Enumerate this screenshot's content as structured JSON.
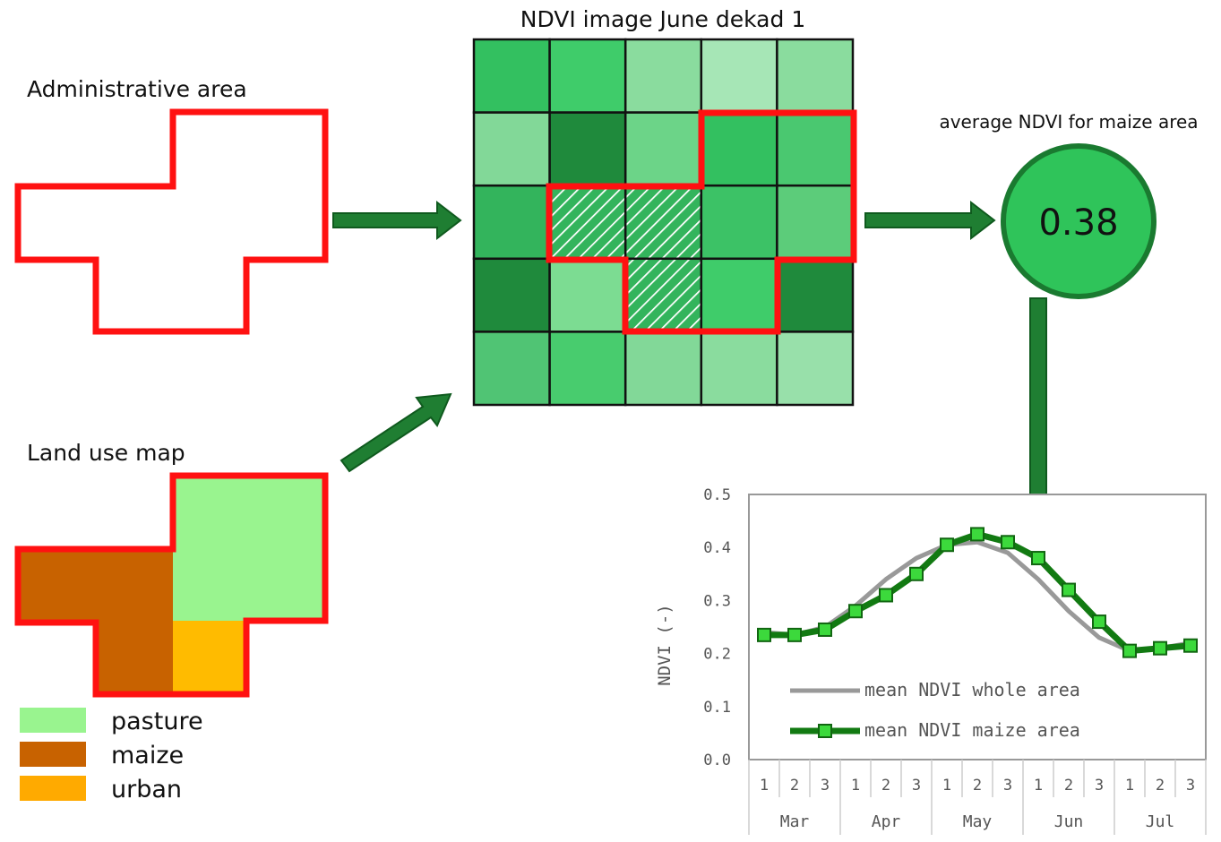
{
  "admin": {
    "label": "Administrative area"
  },
  "ndvi_image": {
    "title": "NDVI image June dekad 1",
    "grid": [
      [
        "#33c060",
        "#3fcc6a",
        "#8adc9e",
        "#a6e6b6",
        "#8adc9e"
      ],
      [
        "#82d898",
        "#1f8a3c",
        "#6cd488",
        "#33c060",
        "#4ac870"
      ],
      [
        "#33b45c",
        "#6cd488",
        "#6cd488",
        "#3cc266",
        "#5ccc7a"
      ],
      [
        "#1f8a3c",
        "#7cdc92",
        "#7cdc92",
        "#3fcc6a",
        "#1f8a3c"
      ],
      [
        "#50c474",
        "#48cc6e",
        "#82d898",
        "#8adc9e",
        "#98e0aa"
      ]
    ]
  },
  "average": {
    "label": "average NDVI for maize area",
    "value": "0.38"
  },
  "landuse": {
    "label": "Land use map",
    "legend": [
      {
        "name": "pasture",
        "color": "#99f48f"
      },
      {
        "name": "maize",
        "color": "#c86200"
      },
      {
        "name": "urban",
        "color": "#ffaa00"
      }
    ]
  },
  "chart_data": {
    "type": "line",
    "ylabel": "NDVI  (-)",
    "ylim": [
      0.0,
      0.5
    ],
    "yticks": [
      "0.0",
      "0.1",
      "0.2",
      "0.3",
      "0.4",
      "0.5"
    ],
    "x_sublabels": [
      "1",
      "2",
      "3",
      "1",
      "2",
      "3",
      "1",
      "2",
      "3",
      "1",
      "2",
      "3",
      "1",
      "2",
      "3"
    ],
    "x_groups": [
      "Mar",
      "Apr",
      "May",
      "Jun",
      "Jul"
    ],
    "grid": false,
    "legend_position": "bottom-left",
    "series": [
      {
        "name": "mean NDVI whole area",
        "color": "#999999",
        "values": [
          0.24,
          0.235,
          0.25,
          0.29,
          0.34,
          0.38,
          0.405,
          0.41,
          0.39,
          0.34,
          0.28,
          0.23,
          0.205,
          0.21,
          0.22
        ]
      },
      {
        "name": "mean NDVI maize area",
        "color": "#127a12",
        "values": [
          0.235,
          0.235,
          0.245,
          0.28,
          0.31,
          0.35,
          0.405,
          0.425,
          0.41,
          0.38,
          0.32,
          0.26,
          0.205,
          0.21,
          0.215
        ]
      }
    ]
  }
}
